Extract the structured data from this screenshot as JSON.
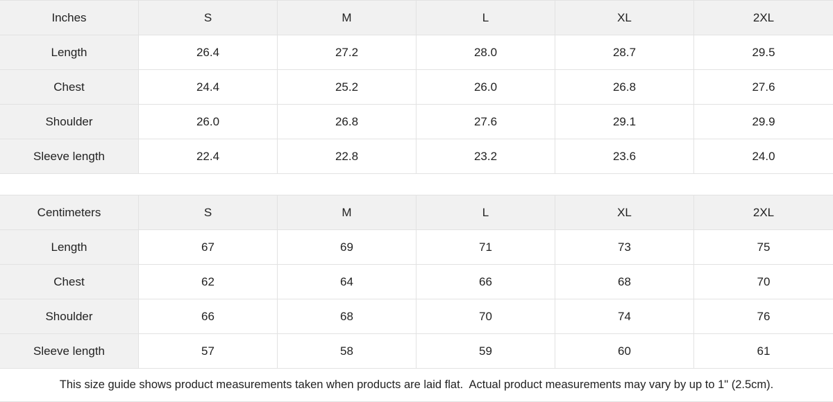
{
  "tables": [
    {
      "unit": "Inches",
      "sizes": [
        "S",
        "M",
        "L",
        "XL",
        "2XL"
      ],
      "rows": [
        {
          "label": "Length",
          "values": [
            "26.4",
            "27.2",
            "28.0",
            "28.7",
            "29.5"
          ]
        },
        {
          "label": "Chest",
          "values": [
            "24.4",
            "25.2",
            "26.0",
            "26.8",
            "27.6"
          ]
        },
        {
          "label": "Shoulder",
          "values": [
            "26.0",
            "26.8",
            "27.6",
            "29.1",
            "29.9"
          ]
        },
        {
          "label": "Sleeve length",
          "values": [
            "22.4",
            "22.8",
            "23.2",
            "23.6",
            "24.0"
          ]
        }
      ]
    },
    {
      "unit": "Centimeters",
      "sizes": [
        "S",
        "M",
        "L",
        "XL",
        "2XL"
      ],
      "rows": [
        {
          "label": "Length",
          "values": [
            "67",
            "69",
            "71",
            "73",
            "75"
          ]
        },
        {
          "label": "Chest",
          "values": [
            "62",
            "64",
            "66",
            "68",
            "70"
          ]
        },
        {
          "label": "Shoulder",
          "values": [
            "66",
            "68",
            "70",
            "74",
            "76"
          ]
        },
        {
          "label": "Sleeve length",
          "values": [
            "57",
            "58",
            "59",
            "60",
            "61"
          ]
        }
      ]
    }
  ],
  "footer": {
    "note": "This size guide shows product measurements taken when products are laid flat.  Actual product measurements may vary by up to 1\" (2.5cm)."
  },
  "colors": {
    "header_bg": "#f1f1f1",
    "cell_bg": "#ffffff",
    "border": "#e2e2e2",
    "text": "#222222"
  }
}
